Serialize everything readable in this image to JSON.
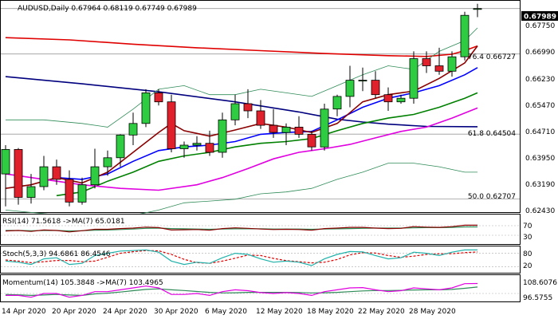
{
  "symbol_line": "AUDUSD,Daily  0.67964 0.68119 0.67749 0.67989",
  "last_price_label": "0.67989",
  "fib_labels": [
    "76.4 0.66727",
    "61.8 0.64504",
    "50.0 0.62707"
  ],
  "price_axis_ticks": [
    "0.67750",
    "0.66990",
    "0.66230",
    "0.65470",
    "0.64710",
    "0.63950",
    "0.63190",
    "0.62430"
  ],
  "x_axis_ticks": [
    "14 Apr 2020",
    "20 Apr 2020",
    "24 Apr 2020",
    "30 Apr 2020",
    "6 May 2020",
    "12 May 2020",
    "18 May 2020",
    "22 May 2020",
    "28 May 2020"
  ],
  "rsi_panel": {
    "label": "RSI(14) 71.5618  ->MA(7) 65.0181",
    "ticks": [
      "70",
      "30"
    ]
  },
  "stoch_panel": {
    "label": "Stoch(5,3,3) 94.6861 86.4546",
    "ticks": [
      "80",
      "20"
    ]
  },
  "momentum_panel": {
    "label": "Momentum(14) 105.3848  ->MA(7) 103.4965",
    "ticks": [
      "108.6076",
      "96.5755"
    ]
  },
  "colors": {
    "up_candle": "#2ecc40",
    "down_candle": "#e0202a",
    "ma_red": "#e00000",
    "ma_navy": "#00007f",
    "ma_blue": "#0000ff",
    "ma_dark_red": "#8b0000",
    "ma_green": "#008000",
    "ma_magenta": "#e000e0",
    "bollinger": "#2e8b57",
    "rsi_line": "#8b0000",
    "rsi_ma": "#2e8b57",
    "stoch_main": "#20b2aa",
    "stoch_signal": "#e00000",
    "momentum_line": "#e000e0",
    "momentum_ma": "#2e8b57"
  },
  "chart_data": {
    "type": "candlestick",
    "title": "AUDUSD,Daily",
    "y_range": [
      0.6243,
      0.6807
    ],
    "last_price": 0.67989,
    "candles": [
      {
        "o": 0.634,
        "h": 0.642,
        "l": 0.625,
        "c": 0.6408
      },
      {
        "o": 0.6408,
        "h": 0.6412,
        "l": 0.6255,
        "c": 0.6275
      },
      {
        "o": 0.6275,
        "h": 0.634,
        "l": 0.6258,
        "c": 0.6305
      },
      {
        "o": 0.6305,
        "h": 0.639,
        "l": 0.6295,
        "c": 0.636
      },
      {
        "o": 0.636,
        "h": 0.638,
        "l": 0.631,
        "c": 0.6325
      },
      {
        "o": 0.6325,
        "h": 0.635,
        "l": 0.625,
        "c": 0.6262
      },
      {
        "o": 0.6262,
        "h": 0.633,
        "l": 0.6255,
        "c": 0.631
      },
      {
        "o": 0.631,
        "h": 0.641,
        "l": 0.63,
        "c": 0.636
      },
      {
        "o": 0.636,
        "h": 0.6405,
        "l": 0.6335,
        "c": 0.6385
      },
      {
        "o": 0.6385,
        "h": 0.645,
        "l": 0.636,
        "c": 0.6448
      },
      {
        "o": 0.6448,
        "h": 0.651,
        "l": 0.642,
        "c": 0.648
      },
      {
        "o": 0.648,
        "h": 0.6575,
        "l": 0.647,
        "c": 0.6565
      },
      {
        "o": 0.6565,
        "h": 0.6575,
        "l": 0.653,
        "c": 0.654
      },
      {
        "o": 0.654,
        "h": 0.656,
        "l": 0.64,
        "c": 0.641
      },
      {
        "o": 0.641,
        "h": 0.643,
        "l": 0.6385,
        "c": 0.642
      },
      {
        "o": 0.642,
        "h": 0.6445,
        "l": 0.6405,
        "c": 0.6425
      },
      {
        "o": 0.6425,
        "h": 0.646,
        "l": 0.639,
        "c": 0.64
      },
      {
        "o": 0.64,
        "h": 0.651,
        "l": 0.6385,
        "c": 0.649
      },
      {
        "o": 0.649,
        "h": 0.656,
        "l": 0.6475,
        "c": 0.6535
      },
      {
        "o": 0.6535,
        "h": 0.6575,
        "l": 0.6495,
        "c": 0.6515
      },
      {
        "o": 0.6515,
        "h": 0.6545,
        "l": 0.6465,
        "c": 0.6475
      },
      {
        "o": 0.6475,
        "h": 0.652,
        "l": 0.644,
        "c": 0.6455
      },
      {
        "o": 0.6455,
        "h": 0.648,
        "l": 0.642,
        "c": 0.647
      },
      {
        "o": 0.647,
        "h": 0.65,
        "l": 0.644,
        "c": 0.645
      },
      {
        "o": 0.645,
        "h": 0.646,
        "l": 0.6405,
        "c": 0.6415
      },
      {
        "o": 0.6415,
        "h": 0.6535,
        "l": 0.6405,
        "c": 0.652
      },
      {
        "o": 0.652,
        "h": 0.656,
        "l": 0.65,
        "c": 0.6555
      },
      {
        "o": 0.6555,
        "h": 0.664,
        "l": 0.6525,
        "c": 0.66
      },
      {
        "o": 0.66,
        "h": 0.6635,
        "l": 0.657,
        "c": 0.66
      },
      {
        "o": 0.66,
        "h": 0.6625,
        "l": 0.655,
        "c": 0.656
      },
      {
        "o": 0.656,
        "h": 0.658,
        "l": 0.6515,
        "c": 0.654
      },
      {
        "o": 0.654,
        "h": 0.656,
        "l": 0.6535,
        "c": 0.655
      },
      {
        "o": 0.655,
        "h": 0.668,
        "l": 0.6535,
        "c": 0.666
      },
      {
        "o": 0.666,
        "h": 0.668,
        "l": 0.662,
        "c": 0.664
      },
      {
        "o": 0.664,
        "h": 0.669,
        "l": 0.6615,
        "c": 0.6625
      },
      {
        "o": 0.6625,
        "h": 0.668,
        "l": 0.661,
        "c": 0.6665
      },
      {
        "o": 0.6665,
        "h": 0.679,
        "l": 0.6655,
        "c": 0.678
      },
      {
        "o": 0.67964,
        "h": 0.68119,
        "l": 0.67749,
        "c": 0.67989
      }
    ],
    "indicators": [
      {
        "kind": "ma_red",
        "points": [
          [
            0,
            0.6718
          ],
          [
            5,
            0.6712
          ],
          [
            10,
            0.67
          ],
          [
            15,
            0.669
          ],
          [
            20,
            0.6682
          ],
          [
            25,
            0.6674
          ],
          [
            30,
            0.6668
          ],
          [
            33,
            0.6666
          ],
          [
            35,
            0.6672
          ],
          [
            36,
            0.6682
          ],
          [
            37,
            0.6695
          ]
        ]
      },
      {
        "kind": "ma_navy",
        "points": [
          [
            0,
            0.661
          ],
          [
            6,
            0.659
          ],
          [
            12,
            0.6568
          ],
          [
            18,
            0.654
          ],
          [
            23,
            0.6512
          ],
          [
            26,
            0.6492
          ],
          [
            28,
            0.6484
          ],
          [
            30,
            0.6478
          ],
          [
            33,
            0.6472
          ],
          [
            37,
            0.6471
          ]
        ]
      },
      {
        "kind": "ma_blue",
        "points": [
          [
            4,
            0.633
          ],
          [
            6,
            0.6325
          ],
          [
            8,
            0.634
          ],
          [
            10,
            0.6375
          ],
          [
            12,
            0.6405
          ],
          [
            14,
            0.6415
          ],
          [
            16,
            0.642
          ],
          [
            18,
            0.643
          ],
          [
            20,
            0.645
          ],
          [
            22,
            0.6455
          ],
          [
            24,
            0.6458
          ],
          [
            26,
            0.649
          ],
          [
            28,
            0.6525
          ],
          [
            30,
            0.655
          ],
          [
            32,
            0.6565
          ],
          [
            34,
            0.6585
          ],
          [
            36,
            0.6615
          ],
          [
            37,
            0.6635
          ]
        ]
      },
      {
        "kind": "ma_dark_red",
        "points": [
          [
            0,
            0.63
          ],
          [
            2,
            0.631
          ],
          [
            4,
            0.633
          ],
          [
            6,
            0.6315
          ],
          [
            8,
            0.6345
          ],
          [
            10,
            0.64
          ],
          [
            12,
            0.6455
          ],
          [
            13,
            0.648
          ],
          [
            14,
            0.646
          ],
          [
            16,
            0.6445
          ],
          [
            18,
            0.6462
          ],
          [
            20,
            0.648
          ],
          [
            22,
            0.647
          ],
          [
            24,
            0.6455
          ],
          [
            26,
            0.648
          ],
          [
            28,
            0.654
          ],
          [
            30,
            0.656
          ],
          [
            32,
            0.657
          ],
          [
            34,
            0.6605
          ],
          [
            36,
            0.6648
          ],
          [
            37,
            0.6695
          ]
        ]
      },
      {
        "kind": "ma_green",
        "points": [
          [
            4,
            0.628
          ],
          [
            6,
            0.629
          ],
          [
            8,
            0.632
          ],
          [
            10,
            0.6345
          ],
          [
            12,
            0.6375
          ],
          [
            14,
            0.639
          ],
          [
            16,
            0.64
          ],
          [
            18,
            0.6415
          ],
          [
            20,
            0.6425
          ],
          [
            22,
            0.643
          ],
          [
            24,
            0.6438
          ],
          [
            26,
            0.646
          ],
          [
            28,
            0.648
          ],
          [
            30,
            0.6495
          ],
          [
            32,
            0.6505
          ],
          [
            34,
            0.6525
          ],
          [
            36,
            0.655
          ],
          [
            37,
            0.6565
          ]
        ]
      },
      {
        "kind": "ma_magenta",
        "points": [
          [
            0,
            0.634
          ],
          [
            3,
            0.6325
          ],
          [
            6,
            0.631
          ],
          [
            9,
            0.63
          ],
          [
            12,
            0.6295
          ],
          [
            15,
            0.631
          ],
          [
            17,
            0.633
          ],
          [
            19,
            0.6355
          ],
          [
            21,
            0.6382
          ],
          [
            23,
            0.64
          ],
          [
            25,
            0.641
          ],
          [
            27,
            0.6422
          ],
          [
            29,
            0.644
          ],
          [
            31,
            0.6458
          ],
          [
            33,
            0.647
          ],
          [
            35,
            0.6495
          ],
          [
            37,
            0.6523
          ]
        ]
      },
      {
        "kind": "bollinger",
        "points": [
          [
            0,
            0.649
          ],
          [
            3,
            0.649
          ],
          [
            6,
            0.648
          ],
          [
            8,
            0.647
          ],
          [
            10,
            0.652
          ],
          [
            12,
            0.6575
          ],
          [
            14,
            0.6585
          ],
          [
            16,
            0.656
          ],
          [
            18,
            0.656
          ],
          [
            20,
            0.6575
          ],
          [
            22,
            0.6565
          ],
          [
            24,
            0.6555
          ],
          [
            26,
            0.6585
          ],
          [
            28,
            0.6615
          ],
          [
            30,
            0.664
          ],
          [
            32,
            0.663
          ],
          [
            34,
            0.668
          ],
          [
            36,
            0.671
          ],
          [
            37,
            0.6745
          ]
        ]
      },
      {
        "kind": "bollinger",
        "points": [
          [
            0,
            0.624
          ],
          [
            3,
            0.623
          ],
          [
            6,
            0.622
          ],
          [
            8,
            0.6225
          ],
          [
            10,
            0.6225
          ],
          [
            12,
            0.624
          ],
          [
            14,
            0.626
          ],
          [
            16,
            0.6265
          ],
          [
            18,
            0.627
          ],
          [
            20,
            0.6285
          ],
          [
            22,
            0.629
          ],
          [
            24,
            0.63
          ],
          [
            26,
            0.6325
          ],
          [
            28,
            0.6345
          ],
          [
            30,
            0.637
          ],
          [
            32,
            0.637
          ],
          [
            34,
            0.636
          ],
          [
            36,
            0.6345
          ],
          [
            37,
            0.6345
          ]
        ]
      }
    ],
    "levels": [
      0.67989,
      0.66727,
      0.64504,
      0.62707
    ],
    "oscillators": {
      "rsi": {
        "range": [
          0,
          100
        ],
        "line": [
          48,
          50,
          46,
          52,
          50,
          44,
          49,
          55,
          55,
          58,
          60,
          64,
          62,
          52,
          53,
          54,
          51,
          58,
          61,
          59,
          56,
          54,
          55,
          54,
          51,
          58,
          60,
          63,
          63,
          60,
          58,
          59,
          66,
          64,
          63,
          66,
          72,
          72
        ],
        "ma": [
          50,
          50,
          49,
          50,
          50,
          48,
          49,
          51,
          52,
          54,
          56,
          59,
          60,
          58,
          57,
          56,
          55,
          56,
          57,
          57,
          57,
          56,
          56,
          56,
          55,
          56,
          57,
          58,
          59,
          60,
          60,
          60,
          61,
          62,
          62,
          63,
          65,
          65
        ]
      },
      "stochastic": {
        "range": [
          0,
          100
        ],
        "main": [
          45,
          40,
          30,
          55,
          60,
          30,
          35,
          70,
          80,
          90,
          92,
          95,
          85,
          45,
          30,
          40,
          35,
          60,
          80,
          75,
          55,
          40,
          45,
          40,
          25,
          55,
          75,
          88,
          86,
          70,
          55,
          60,
          85,
          80,
          70,
          85,
          95,
          95
        ],
        "signal": [
          50,
          45,
          38,
          42,
          48,
          48,
          42,
          45,
          62,
          80,
          87,
          92,
          91,
          75,
          53,
          38,
          35,
          45,
          58,
          72,
          70,
          57,
          47,
          42,
          37,
          40,
          52,
          73,
          83,
          81,
          70,
          62,
          67,
          75,
          78,
          78,
          83,
          86
        ]
      },
      "momentum": {
        "range": [
          96.5755,
          108.6076
        ],
        "line": [
          99,
          99,
          98,
          100,
          100,
          98,
          99,
          101,
          101,
          102,
          103,
          104,
          103,
          99.5,
          99.5,
          100,
          99,
          101,
          102,
          101.5,
          100.5,
          100,
          100.5,
          100,
          99,
          101,
          102,
          103,
          103.2,
          102,
          101,
          101.5,
          103,
          102.5,
          102,
          103,
          105.3,
          105.4
        ],
        "ma": [
          99.5,
          99.3,
          99,
          99.2,
          99.5,
          99.2,
          99,
          99.8,
          100.2,
          100.8,
          101.5,
          102.2,
          102.5,
          102,
          101.6,
          101.1,
          100.6,
          100.3,
          100.4,
          100.6,
          100.6,
          100.6,
          100.6,
          100.5,
          100.3,
          100.4,
          100.6,
          101,
          101.4,
          101.6,
          101.6,
          101.7,
          101.9,
          102,
          102,
          102.2,
          102.8,
          103.5
        ]
      }
    }
  }
}
